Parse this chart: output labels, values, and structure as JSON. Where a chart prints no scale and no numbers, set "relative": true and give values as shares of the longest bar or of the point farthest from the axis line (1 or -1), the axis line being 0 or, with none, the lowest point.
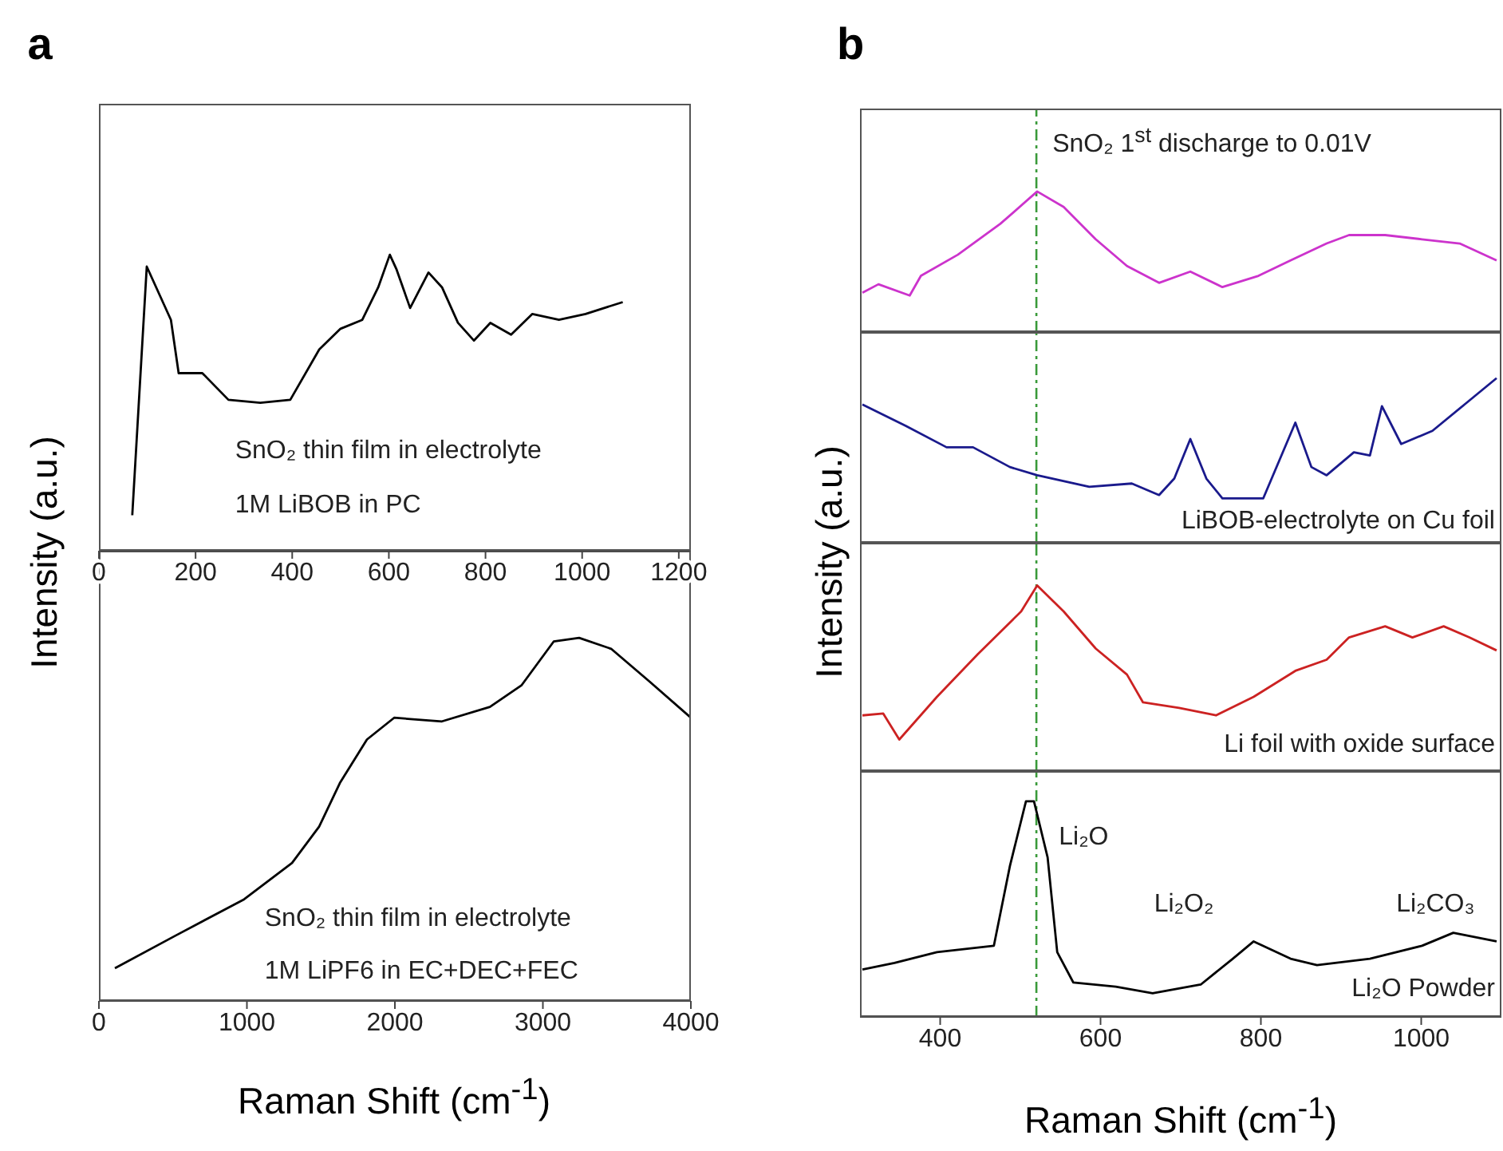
{
  "chart_data": [
    {
      "type": "line",
      "title": "a",
      "ylabel": "Intensity (a.u.)",
      "relative": true,
      "xlim": [
        0,
        1225
      ],
      "xticks": [
        0,
        200,
        400,
        600,
        800,
        1000,
        1200
      ],
      "tick_labels": "x",
      "grid": false,
      "legend": false,
      "marker": "none",
      "annotations": [
        "SnO₂ thin film in electrolyte",
        "1M LiBOB in PC"
      ],
      "x": [
        69,
        99,
        149,
        165,
        214,
        268,
        334,
        396,
        456,
        500,
        545,
        578,
        602,
        616,
        644,
        682,
        710,
        743,
        776,
        810,
        853,
        897,
        952,
        1007,
        1084
      ],
      "series": [
        {
          "color": "#000000",
          "values": [
            0.12,
            0.96,
            0.78,
            0.6,
            0.6,
            0.51,
            0.5,
            0.51,
            0.68,
            0.75,
            0.78,
            0.89,
            1.0,
            0.95,
            0.82,
            0.94,
            0.89,
            0.77,
            0.71,
            0.77,
            0.73,
            0.8,
            0.78,
            0.8,
            0.84
          ]
        }
      ]
    },
    {
      "type": "line",
      "xlabel": "Raman Shift (cm$^{-1}$)",
      "relative": true,
      "xlim": [
        0,
        4000
      ],
      "xticks": [
        0,
        1000,
        2000,
        3000,
        4000
      ],
      "tick_labels": "x",
      "grid": false,
      "legend": false,
      "marker": "none",
      "annotations": [
        "SnO₂ thin film in electrolyte",
        "1M LiPF6 in EC+DEC+FEC"
      ],
      "x": [
        108,
        518,
        981,
        1305,
        1488,
        1628,
        1811,
        1995,
        2318,
        2642,
        2857,
        3073,
        3245,
        3461,
        3720,
        4000
      ],
      "series": [
        {
          "color": "#000000",
          "values": [
            0.09,
            0.18,
            0.28,
            0.38,
            0.48,
            0.6,
            0.72,
            0.78,
            0.77,
            0.81,
            0.87,
            0.99,
            1.0,
            0.97,
            0.88,
            0.78
          ]
        }
      ]
    },
    {
      "type": "line",
      "title": "b",
      "ylabel": "Intensity (a.u.)",
      "relative": true,
      "xlim": [
        300,
        1100
      ],
      "tick_labels": false,
      "grid": false,
      "legend": false,
      "marker": "none",
      "annotations": [
        "SnO₂ 1$^{st}$ discharge to 0.01V"
      ],
      "ref_lines": [
        {
          "axis": "x",
          "value": 520,
          "color": "#3a9a3a",
          "line_style": "dashed"
        }
      ],
      "x": [
        303,
        323,
        362,
        376,
        422,
        475,
        521,
        554,
        594,
        633,
        673,
        712,
        752,
        797,
        837,
        882,
        910,
        955,
        1001,
        1048,
        1094
      ],
      "series": [
        {
          "color": "#cc33cc",
          "values": [
            0.28,
            0.34,
            0.26,
            0.4,
            0.55,
            0.77,
            1.0,
            0.89,
            0.66,
            0.47,
            0.35,
            0.43,
            0.32,
            0.4,
            0.51,
            0.63,
            0.69,
            0.69,
            0.66,
            0.63,
            0.51
          ]
        }
      ]
    },
    {
      "type": "line",
      "relative": true,
      "xlim": [
        300,
        1100
      ],
      "tick_labels": false,
      "grid": false,
      "legend": false,
      "marker": "none",
      "annotations": [
        "LiBOB-electrolyte on Cu foil"
      ],
      "ref_lines": [
        {
          "axis": "x",
          "value": 520,
          "color": "#3a9a3a",
          "line_style": "dashed"
        }
      ],
      "x": [
        303,
        357,
        408,
        441,
        487,
        521,
        586,
        639,
        673,
        692,
        712,
        732,
        752,
        803,
        843,
        863,
        882,
        916,
        936,
        951,
        975,
        1014,
        1054,
        1094
      ],
      "series": [
        {
          "color": "#1a1a8c",
          "values": [
            0.84,
            0.71,
            0.58,
            0.58,
            0.46,
            0.41,
            0.34,
            0.36,
            0.29,
            0.39,
            0.63,
            0.39,
            0.27,
            0.27,
            0.73,
            0.46,
            0.41,
            0.55,
            0.53,
            0.83,
            0.6,
            0.68,
            0.84,
            1.0
          ]
        }
      ]
    },
    {
      "type": "line",
      "relative": true,
      "xlim": [
        300,
        1100
      ],
      "tick_labels": false,
      "grid": false,
      "legend": false,
      "marker": "none",
      "annotations": [
        "Li foil with oxide surface"
      ],
      "ref_lines": [
        {
          "axis": "x",
          "value": 520,
          "color": "#3a9a3a",
          "line_style": "dashed"
        }
      ],
      "x": [
        303,
        329,
        349,
        396,
        447,
        501,
        521,
        554,
        594,
        633,
        653,
        698,
        744,
        791,
        843,
        882,
        910,
        955,
        989,
        1028,
        1060,
        1094
      ],
      "series": [
        {
          "color": "#cc2222",
          "values": [
            0.3,
            0.31,
            0.17,
            0.4,
            0.63,
            0.86,
            1.0,
            0.86,
            0.66,
            0.52,
            0.37,
            0.34,
            0.3,
            0.4,
            0.54,
            0.6,
            0.72,
            0.78,
            0.72,
            0.78,
            0.72,
            0.65
          ]
        }
      ]
    },
    {
      "type": "line",
      "xlabel": "Raman Shift (cm$^{-1}$)",
      "relative": true,
      "xlim": [
        300,
        1100
      ],
      "xticks": [
        400,
        600,
        800,
        1000
      ],
      "tick_labels": "x",
      "grid": false,
      "legend": false,
      "marker": "none",
      "annotations": [
        "Li₂O",
        "Li₂O₂",
        "Li₂CO₃",
        "Li₂O Powder"
      ],
      "ref_lines": [
        {
          "axis": "x",
          "value": 520,
          "color": "#3a9a3a",
          "line_style": "dashed"
        }
      ],
      "x": [
        303,
        343,
        396,
        467,
        487,
        507,
        517,
        534,
        546,
        566,
        619,
        665,
        725,
        765,
        791,
        837,
        870,
        936,
        1001,
        1040,
        1094
      ],
      "series": [
        {
          "color": "#000000",
          "values": [
            0.22,
            0.25,
            0.3,
            0.33,
            0.7,
            1.0,
            1.0,
            0.74,
            0.3,
            0.16,
            0.14,
            0.11,
            0.15,
            0.27,
            0.35,
            0.27,
            0.24,
            0.27,
            0.33,
            0.39,
            0.35
          ]
        }
      ]
    }
  ]
}
